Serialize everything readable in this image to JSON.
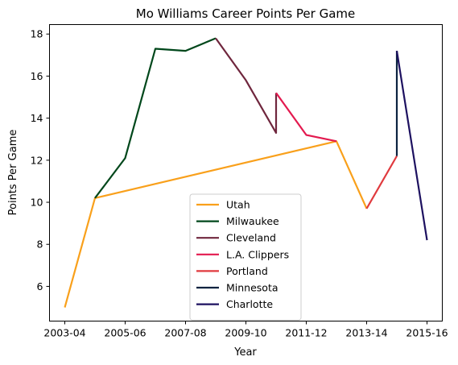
{
  "chart_data": {
    "type": "line",
    "title": "Mo Williams Career Points Per Game",
    "xlabel": "Year",
    "ylabel": "Points Per Game",
    "x_categories": [
      "2003-04",
      "2004-05",
      "2005-06",
      "2006-07",
      "2007-08",
      "2008-09",
      "2009-10",
      "2010-11",
      "2011-12",
      "2012-13",
      "2013-14",
      "2014-15",
      "2015-16"
    ],
    "x_tick_labels": [
      "2003-04",
      "2005-06",
      "2007-08",
      "2009-10",
      "2011-12",
      "2013-14",
      "2015-16"
    ],
    "y_ticks": [
      6,
      8,
      10,
      12,
      14,
      16,
      18
    ],
    "ylim": [
      4.35,
      18.45
    ],
    "legend_position": "lower center",
    "series": [
      {
        "name": "Utah",
        "color": "#F9A01B",
        "points": [
          [
            "2003-04",
            5.0
          ],
          [
            "2004-05",
            10.2
          ],
          [
            "2012-13",
            12.9
          ],
          [
            "2013-14",
            9.7
          ]
        ]
      },
      {
        "name": "Milwaukee",
        "color": "#00471B",
        "points": [
          [
            "2004-05",
            10.2
          ],
          [
            "2005-06",
            12.1
          ],
          [
            "2006-07",
            17.3
          ],
          [
            "2007-08",
            17.2
          ],
          [
            "2008-09",
            17.8
          ]
        ]
      },
      {
        "name": "Cleveland",
        "color": "#6F263D",
        "points": [
          [
            "2008-09",
            17.8
          ],
          [
            "2009-10",
            15.8
          ],
          [
            "2010-11",
            13.3
          ],
          [
            "2010-11",
            15.2
          ]
        ]
      },
      {
        "name": "L.A. Clippers",
        "color": "#E31A4F",
        "points": [
          [
            "2010-11",
            15.2
          ],
          [
            "2011-12",
            13.2
          ],
          [
            "2012-13",
            12.9
          ]
        ]
      },
      {
        "name": "Portland",
        "color": "#E03A3E",
        "points": [
          [
            "2013-14",
            9.7
          ],
          [
            "2014-15",
            12.2
          ]
        ]
      },
      {
        "name": "Minnesota",
        "color": "#0C2340",
        "points": [
          [
            "2014-15",
            12.2
          ],
          [
            "2014-15",
            17.2
          ]
        ]
      },
      {
        "name": "Charlotte",
        "color": "#1D1160",
        "points": [
          [
            "2014-15",
            17.2
          ],
          [
            "2015-16",
            8.2
          ]
        ]
      }
    ]
  }
}
